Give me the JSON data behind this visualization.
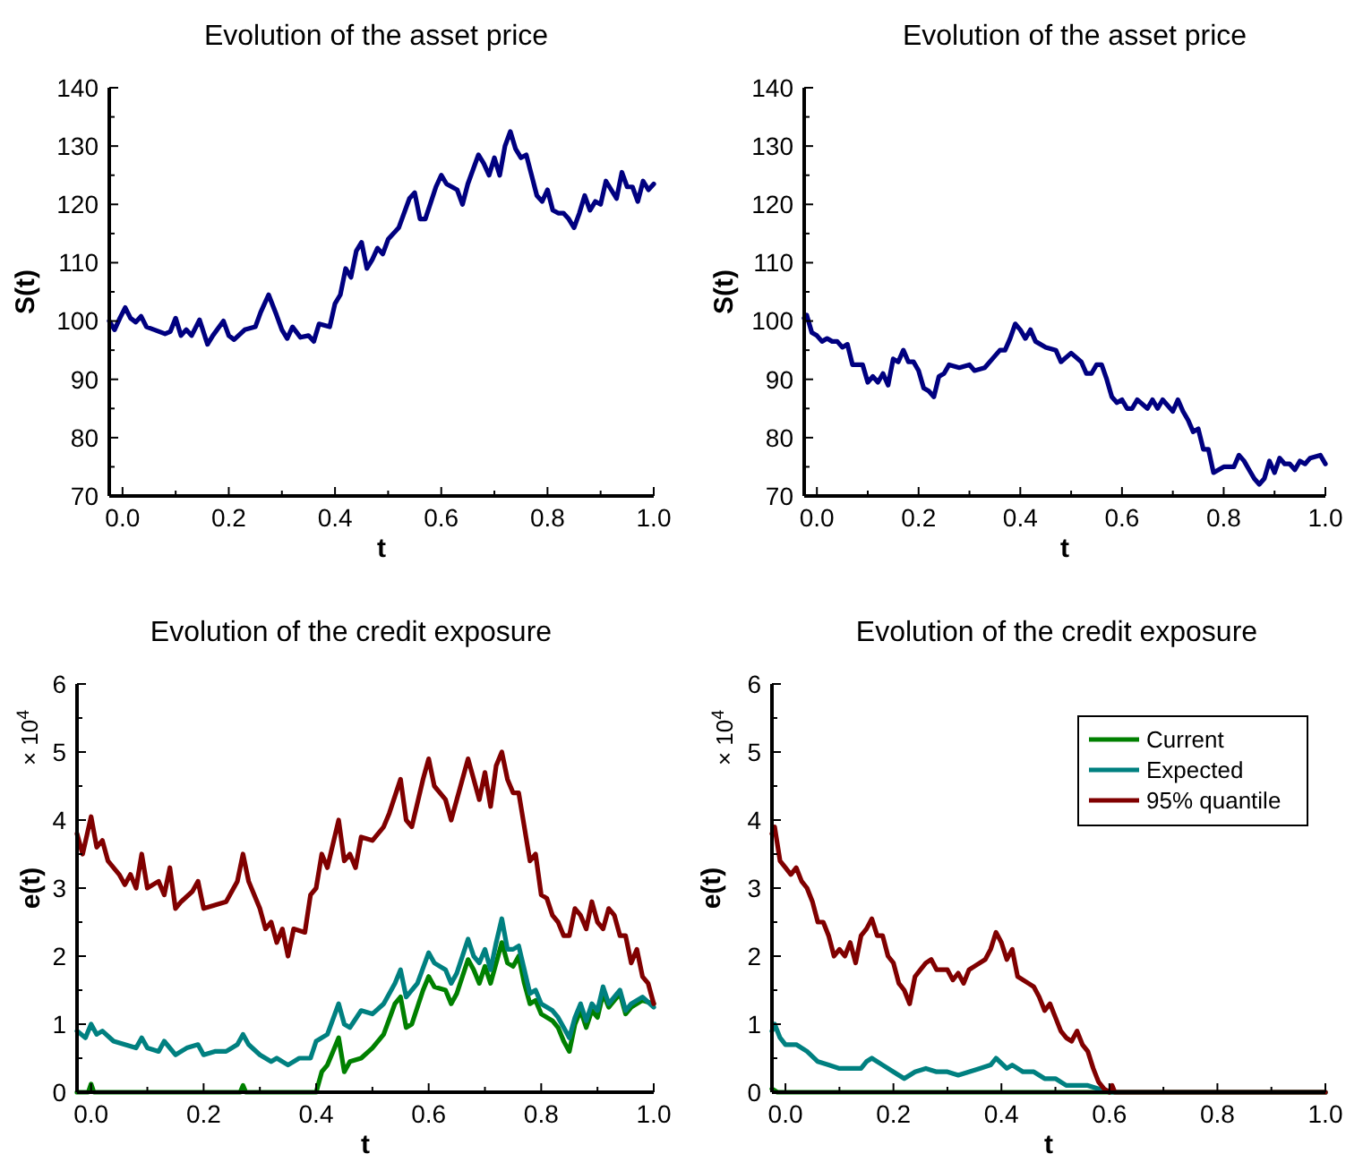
{
  "chart_data": [
    {
      "type": "line",
      "title": "Evolution of the asset price",
      "xlabel": "t",
      "ylabel": "S(t)",
      "xlim": [
        -0.025,
        1.0
      ],
      "ylim": [
        70,
        140
      ],
      "xticks": [
        {
          "value": 0.1,
          "label": null
        },
        {
          "value": 0.0,
          "label": "0.0"
        },
        0.2,
        {
          "value": 0.3,
          "label": null
        },
        0.4,
        {
          "value": 0.5,
          "label": null
        },
        0.6,
        {
          "value": 0.7,
          "label": null
        },
        0.8,
        {
          "value": 0.9,
          "label": null
        },
        {
          "value": 1.0,
          "label": "1.0"
        }
      ],
      "yticks": [
        70,
        {
          "value": 75,
          "label": null
        },
        80,
        {
          "value": 85,
          "label": null
        },
        90,
        {
          "value": 95,
          "label": null
        },
        100,
        {
          "value": 105,
          "label": null
        },
        110,
        {
          "value": 115,
          "label": null
        },
        120,
        {
          "value": 125,
          "label": null
        },
        130,
        {
          "value": 135,
          "label": null
        },
        140
      ],
      "grid": false,
      "legend": false,
      "series": [
        {
          "color": "#000080",
          "x": [
            -0.025,
            -0.015,
            -0.005,
            0.005,
            0.015,
            0.025,
            0.035,
            0.045,
            0.06,
            0.08,
            0.09,
            0.1,
            0.11,
            0.12,
            0.13,
            0.145,
            0.16,
            0.17,
            0.19,
            0.2,
            0.21,
            0.23,
            0.25,
            0.26,
            0.275,
            0.29,
            0.3,
            0.31,
            0.32,
            0.335,
            0.35,
            0.36,
            0.37,
            0.39,
            0.4,
            0.41,
            0.42,
            0.43,
            0.44,
            0.45,
            0.46,
            0.47,
            0.48,
            0.49,
            0.5,
            0.52,
            0.54,
            0.55,
            0.56,
            0.57,
            0.59,
            0.6,
            0.61,
            0.63,
            0.64,
            0.65,
            0.67,
            0.68,
            0.69,
            0.7,
            0.71,
            0.72,
            0.73,
            0.74,
            0.75,
            0.76,
            0.77,
            0.78,
            0.79,
            0.8,
            0.81,
            0.82,
            0.83,
            0.84,
            0.85,
            0.86,
            0.87,
            0.88,
            0.89,
            0.9,
            0.91,
            0.92,
            0.93,
            0.94,
            0.95,
            0.96,
            0.97,
            0.98,
            0.99,
            1.0
          ],
          "values": [
            100,
            98.5,
            100.5,
            102.3,
            100.5,
            99.8,
            100.8,
            99,
            98.5,
            97.8,
            98.2,
            100.5,
            97.5,
            98.5,
            97.5,
            100.2,
            96,
            97.5,
            100,
            97.5,
            96.8,
            98.5,
            99,
            101.5,
            104.5,
            101,
            98.5,
            97,
            99,
            97.2,
            97.5,
            96.5,
            99.5,
            99,
            103,
            104.5,
            109,
            107.5,
            112,
            113.5,
            109,
            110.5,
            112.5,
            111.5,
            114,
            116,
            121,
            122,
            117.5,
            117.5,
            123,
            125,
            123.5,
            122.5,
            120,
            123.5,
            128.5,
            127,
            125,
            128,
            125,
            130,
            132.5,
            129.5,
            128,
            128.5,
            125,
            121.5,
            120.5,
            122.5,
            119,
            118.5,
            118.5,
            117.5,
            116,
            118.5,
            121.5,
            119,
            120.5,
            120,
            124,
            122.5,
            121,
            125.5,
            123,
            123,
            120.5,
            124,
            122.5,
            123.5
          ]
        }
      ]
    },
    {
      "type": "line",
      "title": "Evolution of the asset price",
      "xlabel": "t",
      "ylabel": "S(t)",
      "xlim": [
        -0.025,
        1.0
      ],
      "ylim": [
        70,
        140
      ],
      "xticks": [
        {
          "value": 0.1,
          "label": null
        },
        {
          "value": 0.0,
          "label": "0.0"
        },
        0.2,
        {
          "value": 0.3,
          "label": null
        },
        0.4,
        {
          "value": 0.5,
          "label": null
        },
        0.6,
        {
          "value": 0.7,
          "label": null
        },
        0.8,
        {
          "value": 0.9,
          "label": null
        },
        {
          "value": 1.0,
          "label": "1.0"
        }
      ],
      "yticks": [
        70,
        {
          "value": 75,
          "label": null
        },
        80,
        {
          "value": 85,
          "label": null
        },
        90,
        {
          "value": 95,
          "label": null
        },
        100,
        {
          "value": 105,
          "label": null
        },
        110,
        {
          "value": 115,
          "label": null
        },
        120,
        {
          "value": 125,
          "label": null
        },
        130,
        {
          "value": 135,
          "label": null
        },
        140
      ],
      "grid": false,
      "legend": false,
      "series": [
        {
          "color": "#000080",
          "x": [
            -0.025,
            -0.02,
            -0.01,
            0.0,
            0.01,
            0.02,
            0.03,
            0.04,
            0.05,
            0.06,
            0.07,
            0.08,
            0.09,
            0.1,
            0.11,
            0.12,
            0.13,
            0.14,
            0.15,
            0.16,
            0.17,
            0.18,
            0.19,
            0.2,
            0.21,
            0.22,
            0.23,
            0.24,
            0.25,
            0.26,
            0.28,
            0.3,
            0.31,
            0.33,
            0.35,
            0.36,
            0.37,
            0.38,
            0.39,
            0.4,
            0.41,
            0.42,
            0.43,
            0.45,
            0.47,
            0.48,
            0.5,
            0.52,
            0.53,
            0.54,
            0.55,
            0.56,
            0.57,
            0.58,
            0.59,
            0.6,
            0.61,
            0.62,
            0.63,
            0.65,
            0.66,
            0.67,
            0.68,
            0.7,
            0.71,
            0.72,
            0.73,
            0.74,
            0.75,
            0.76,
            0.77,
            0.78,
            0.79,
            0.8,
            0.82,
            0.83,
            0.84,
            0.85,
            0.86,
            0.87,
            0.88,
            0.89,
            0.9,
            0.91,
            0.92,
            0.93,
            0.94,
            0.95,
            0.96,
            0.97,
            0.99,
            1.0
          ],
          "values": [
            100.5,
            101,
            98,
            97.5,
            96.5,
            97,
            96.5,
            96.5,
            95.5,
            96,
            92.5,
            92.5,
            92.5,
            89.5,
            90.5,
            89.5,
            91,
            89,
            93.5,
            93,
            95,
            93,
            93,
            91.5,
            88.5,
            88,
            87,
            90.5,
            91,
            92.5,
            92,
            92.5,
            91.5,
            92,
            94,
            95,
            95,
            97,
            99.5,
            98.5,
            97,
            98.5,
            96.5,
            95.5,
            95,
            93,
            94.5,
            93,
            91,
            91,
            92.5,
            92.5,
            90,
            87,
            86,
            86.5,
            85,
            85,
            86.5,
            85,
            86.5,
            85,
            86.5,
            84.5,
            86.5,
            84.5,
            83,
            81,
            81.5,
            78,
            78,
            74,
            74.5,
            75,
            75,
            77,
            76,
            74.5,
            73,
            72,
            73,
            76,
            74,
            76.5,
            75.5,
            75.5,
            74.5,
            76,
            75.5,
            76.5,
            77,
            75.5
          ]
        }
      ]
    },
    {
      "type": "line",
      "title": "Evolution of the credit exposure",
      "xlabel": "t",
      "ylabel": "e(t)",
      "annotations": [
        "× 10$^{4}$"
      ],
      "xlim": [
        -0.025,
        1.0
      ],
      "ylim": [
        0,
        6
      ],
      "xticks": [
        {
          "value": 0.1,
          "label": null
        },
        {
          "value": 0.0,
          "label": "0.0"
        },
        0.2,
        {
          "value": 0.3,
          "label": null
        },
        0.4,
        {
          "value": 0.5,
          "label": null
        },
        0.6,
        {
          "value": 0.7,
          "label": null
        },
        0.8,
        {
          "value": 0.9,
          "label": null
        },
        {
          "value": 1.0,
          "label": "1.0"
        }
      ],
      "yticks": [
        0,
        {
          "value": 0.5,
          "label": null
        },
        1,
        {
          "value": 1.5,
          "label": null
        },
        2,
        {
          "value": 2.5,
          "label": null
        },
        3,
        {
          "value": 3.5,
          "label": null
        },
        4,
        {
          "value": 4.5,
          "label": null
        },
        5,
        {
          "value": 5.5,
          "label": null
        },
        6
      ],
      "grid": false,
      "legend": false,
      "series": [
        {
          "color": "#008000",
          "x": [
            -0.025,
            -0.005,
            0.0,
            0.005,
            0.265,
            0.27,
            0.275,
            0.4,
            0.41,
            0.42,
            0.43,
            0.44,
            0.45,
            0.46,
            0.48,
            0.5,
            0.52,
            0.54,
            0.55,
            0.56,
            0.57,
            0.59,
            0.6,
            0.61,
            0.63,
            0.64,
            0.65,
            0.67,
            0.68,
            0.69,
            0.7,
            0.71,
            0.72,
            0.73,
            0.74,
            0.75,
            0.76,
            0.77,
            0.78,
            0.79,
            0.8,
            0.82,
            0.83,
            0.84,
            0.85,
            0.86,
            0.87,
            0.88,
            0.89,
            0.9,
            0.91,
            0.92,
            0.94,
            0.95,
            0.96,
            0.98,
            1.0
          ],
          "values": [
            0,
            0,
            0.12,
            0,
            0,
            0.1,
            0,
            0,
            0.3,
            0.4,
            0.6,
            0.8,
            0.3,
            0.45,
            0.5,
            0.65,
            0.85,
            1.3,
            1.4,
            0.95,
            1.0,
            1.5,
            1.7,
            1.55,
            1.5,
            1.3,
            1.45,
            1.95,
            1.8,
            1.6,
            1.85,
            1.6,
            1.9,
            2.2,
            1.9,
            1.85,
            2.0,
            1.6,
            1.3,
            1.35,
            1.15,
            1.05,
            0.95,
            0.75,
            0.6,
            1.0,
            1.2,
            0.95,
            1.2,
            1.1,
            1.45,
            1.25,
            1.45,
            1.15,
            1.25,
            1.35,
            1.3
          ]
        },
        {
          "color": "#008080",
          "x": [
            -0.025,
            -0.01,
            0.0,
            0.01,
            0.02,
            0.04,
            0.06,
            0.08,
            0.09,
            0.1,
            0.12,
            0.13,
            0.15,
            0.17,
            0.19,
            0.2,
            0.22,
            0.24,
            0.26,
            0.27,
            0.28,
            0.3,
            0.32,
            0.33,
            0.35,
            0.37,
            0.39,
            0.4,
            0.42,
            0.44,
            0.45,
            0.46,
            0.48,
            0.5,
            0.52,
            0.54,
            0.55,
            0.56,
            0.58,
            0.6,
            0.61,
            0.63,
            0.64,
            0.65,
            0.67,
            0.68,
            0.69,
            0.7,
            0.71,
            0.72,
            0.73,
            0.74,
            0.75,
            0.76,
            0.77,
            0.78,
            0.79,
            0.8,
            0.82,
            0.83,
            0.84,
            0.85,
            0.86,
            0.87,
            0.88,
            0.89,
            0.9,
            0.91,
            0.92,
            0.94,
            0.95,
            0.96,
            0.98,
            1.0
          ],
          "values": [
            0.9,
            0.8,
            1.0,
            0.85,
            0.9,
            0.75,
            0.7,
            0.65,
            0.8,
            0.65,
            0.6,
            0.75,
            0.55,
            0.65,
            0.7,
            0.55,
            0.6,
            0.6,
            0.7,
            0.85,
            0.7,
            0.55,
            0.45,
            0.5,
            0.4,
            0.5,
            0.5,
            0.75,
            0.85,
            1.3,
            1.0,
            0.95,
            1.2,
            1.15,
            1.3,
            1.6,
            1.8,
            1.4,
            1.6,
            2.05,
            1.9,
            1.8,
            1.6,
            1.75,
            2.25,
            2.0,
            1.9,
            2.1,
            1.8,
            2.2,
            2.55,
            2.1,
            2.1,
            2.15,
            1.8,
            1.45,
            1.5,
            1.3,
            1.2,
            1.1,
            0.95,
            0.8,
            1.1,
            1.3,
            1.05,
            1.3,
            1.2,
            1.55,
            1.3,
            1.5,
            1.2,
            1.3,
            1.4,
            1.25
          ]
        },
        {
          "color": "#800000",
          "x": [
            -0.025,
            -0.015,
            0.0,
            0.01,
            0.02,
            0.03,
            0.05,
            0.06,
            0.07,
            0.08,
            0.09,
            0.1,
            0.12,
            0.13,
            0.14,
            0.15,
            0.16,
            0.18,
            0.19,
            0.2,
            0.22,
            0.24,
            0.26,
            0.27,
            0.28,
            0.3,
            0.31,
            0.32,
            0.33,
            0.34,
            0.35,
            0.36,
            0.38,
            0.39,
            0.4,
            0.41,
            0.42,
            0.44,
            0.45,
            0.46,
            0.47,
            0.48,
            0.5,
            0.52,
            0.53,
            0.55,
            0.56,
            0.57,
            0.59,
            0.6,
            0.61,
            0.63,
            0.64,
            0.65,
            0.67,
            0.68,
            0.69,
            0.7,
            0.71,
            0.72,
            0.73,
            0.74,
            0.75,
            0.76,
            0.77,
            0.78,
            0.79,
            0.8,
            0.81,
            0.82,
            0.83,
            0.84,
            0.85,
            0.86,
            0.87,
            0.88,
            0.89,
            0.9,
            0.91,
            0.92,
            0.93,
            0.94,
            0.95,
            0.96,
            0.97,
            0.98,
            0.99,
            1.0
          ],
          "values": [
            3.8,
            3.5,
            4.05,
            3.6,
            3.7,
            3.4,
            3.2,
            3.05,
            3.2,
            3.0,
            3.5,
            3.0,
            3.1,
            2.9,
            3.3,
            2.7,
            2.8,
            2.95,
            3.1,
            2.7,
            2.75,
            2.8,
            3.1,
            3.5,
            3.1,
            2.7,
            2.4,
            2.5,
            2.2,
            2.4,
            2.0,
            2.4,
            2.35,
            2.9,
            3.0,
            3.5,
            3.3,
            4.0,
            3.4,
            3.5,
            3.3,
            3.75,
            3.7,
            3.9,
            4.1,
            4.6,
            4.0,
            3.9,
            4.6,
            4.9,
            4.5,
            4.3,
            4.0,
            4.3,
            4.9,
            4.6,
            4.3,
            4.7,
            4.2,
            4.8,
            5.0,
            4.6,
            4.4,
            4.4,
            3.9,
            3.4,
            3.5,
            2.9,
            2.85,
            2.6,
            2.5,
            2.3,
            2.3,
            2.7,
            2.6,
            2.4,
            2.8,
            2.5,
            2.4,
            2.7,
            2.6,
            2.3,
            2.3,
            1.9,
            2.1,
            1.7,
            1.6,
            1.3
          ]
        }
      ]
    },
    {
      "type": "line",
      "title": "Evolution of the credit exposure",
      "xlabel": "t",
      "ylabel": "e(t)",
      "annotations": [
        "× 10$^{4}$"
      ],
      "xlim": [
        -0.025,
        1.0
      ],
      "ylim": [
        0,
        6
      ],
      "xticks": [
        {
          "value": 0.1,
          "label": null
        },
        {
          "value": 0.0,
          "label": "0.0"
        },
        0.2,
        {
          "value": 0.3,
          "label": null
        },
        0.4,
        {
          "value": 0.5,
          "label": null
        },
        0.6,
        {
          "value": 0.7,
          "label": null
        },
        0.8,
        {
          "value": 0.9,
          "label": null
        },
        {
          "value": 1.0,
          "label": "1.0"
        }
      ],
      "yticks": [
        0,
        {
          "value": 0.5,
          "label": null
        },
        1,
        {
          "value": 1.5,
          "label": null
        },
        2,
        {
          "value": 2.5,
          "label": null
        },
        3,
        {
          "value": 3.5,
          "label": null
        },
        4,
        {
          "value": 4.5,
          "label": null
        },
        5,
        {
          "value": 5.5,
          "label": null
        },
        6
      ],
      "grid": false,
      "legend": "top right",
      "series": [
        {
          "name": "Current",
          "color": "#008000",
          "x": [
            -0.025,
            -0.015,
            1.0
          ],
          "values": [
            0.05,
            0,
            0
          ]
        },
        {
          "name": "Expected",
          "color": "#008080",
          "x": [
            -0.025,
            -0.02,
            -0.01,
            0.0,
            0.02,
            0.04,
            0.06,
            0.08,
            0.1,
            0.12,
            0.14,
            0.15,
            0.16,
            0.18,
            0.2,
            0.22,
            0.24,
            0.26,
            0.28,
            0.3,
            0.32,
            0.34,
            0.36,
            0.38,
            0.39,
            0.41,
            0.42,
            0.44,
            0.46,
            0.48,
            0.5,
            0.52,
            0.54,
            0.56,
            0.58,
            0.6,
            1.0
          ],
          "values": [
            0.9,
            1.0,
            0.8,
            0.7,
            0.7,
            0.6,
            0.45,
            0.4,
            0.35,
            0.35,
            0.35,
            0.45,
            0.5,
            0.4,
            0.3,
            0.2,
            0.3,
            0.35,
            0.3,
            0.3,
            0.25,
            0.3,
            0.35,
            0.4,
            0.5,
            0.35,
            0.4,
            0.3,
            0.3,
            0.2,
            0.2,
            0.1,
            0.1,
            0.1,
            0.05,
            0,
            0
          ]
        },
        {
          "name": "95% quantile",
          "color": "#800000",
          "x": [
            -0.025,
            -0.02,
            -0.01,
            0.0,
            0.01,
            0.02,
            0.03,
            0.04,
            0.05,
            0.06,
            0.07,
            0.08,
            0.09,
            0.1,
            0.11,
            0.12,
            0.13,
            0.14,
            0.15,
            0.16,
            0.17,
            0.18,
            0.19,
            0.2,
            0.21,
            0.22,
            0.23,
            0.24,
            0.25,
            0.26,
            0.27,
            0.28,
            0.3,
            0.31,
            0.32,
            0.33,
            0.34,
            0.35,
            0.37,
            0.38,
            0.39,
            0.4,
            0.41,
            0.42,
            0.43,
            0.45,
            0.46,
            0.47,
            0.48,
            0.49,
            0.5,
            0.51,
            0.52,
            0.53,
            0.54,
            0.55,
            0.56,
            0.57,
            0.58,
            0.59,
            0.6,
            0.605,
            0.61,
            1.0
          ],
          "values": [
            3.8,
            3.9,
            3.4,
            3.3,
            3.2,
            3.3,
            3.1,
            3.0,
            2.8,
            2.5,
            2.5,
            2.3,
            2.0,
            2.1,
            2.0,
            2.2,
            1.9,
            2.3,
            2.4,
            2.55,
            2.3,
            2.3,
            2.0,
            1.9,
            1.6,
            1.5,
            1.3,
            1.7,
            1.8,
            1.9,
            1.95,
            1.8,
            1.8,
            1.65,
            1.75,
            1.6,
            1.8,
            1.85,
            1.95,
            2.1,
            2.35,
            2.2,
            1.95,
            2.1,
            1.7,
            1.6,
            1.55,
            1.4,
            1.2,
            1.3,
            1.1,
            0.9,
            0.8,
            0.75,
            0.9,
            0.7,
            0.6,
            0.35,
            0.15,
            0.05,
            0,
            0.1,
            0,
            0
          ]
        }
      ]
    }
  ]
}
